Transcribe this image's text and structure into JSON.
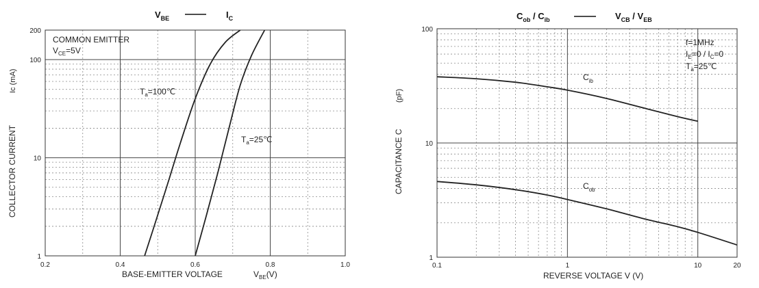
{
  "chart_data": [
    {
      "type": "line",
      "title_parts": {
        "a": "V",
        "a_sub": "BE",
        "b": "I",
        "b_sub": "C"
      },
      "xlabel": "BASE-EMITTER VOLTAGE",
      "xunit": {
        "sym": "V",
        "sub": "BE",
        "unit": "(V)"
      },
      "ylabel": "COLLECTOR CURRENT",
      "yunit": "Ic (mA)",
      "xlim": [
        0.2,
        1.0
      ],
      "ylim": [
        1,
        200
      ],
      "yscale": "log",
      "grid": true,
      "x_ticks": [
        "0.2",
        "0.4",
        "0.6",
        "0.8",
        "1.0"
      ],
      "y_ticks": [
        "1",
        "10",
        "100",
        "200"
      ],
      "annotations": {
        "line1": "COMMON EMITTER",
        "line2_a": "V",
        "line2_sub": "CE",
        "line2_b": "=5V"
      },
      "series": [
        {
          "name": "Ta=100℃",
          "label_a": "T",
          "label_sub": "a",
          "label_b": "=100℃",
          "points": [
            [
              0.465,
              1
            ],
            [
              0.5,
              2.6
            ],
            [
              0.53,
              6
            ],
            [
              0.56,
              14
            ],
            [
              0.6,
              40
            ],
            [
              0.64,
              90
            ],
            [
              0.68,
              150
            ],
            [
              0.72,
              200
            ]
          ]
        },
        {
          "name": "Ta=25℃",
          "label_a": "T",
          "label_sub": "a",
          "label_b": "=25℃",
          "points": [
            [
              0.6,
              1
            ],
            [
              0.63,
              2.6
            ],
            [
              0.66,
              7
            ],
            [
              0.69,
              20
            ],
            [
              0.72,
              55
            ],
            [
              0.75,
              110
            ],
            [
              0.785,
              200
            ]
          ]
        }
      ]
    },
    {
      "type": "line",
      "title_parts": {
        "a": "C",
        "a_sub": "ob",
        "b": "C",
        "b_sub": "ib",
        "c": "V",
        "c_sub": "CB",
        "d": "V",
        "d_sub": "EB"
      },
      "xlabel": "REVERSE VOLTAGE V (V)",
      "ylabel": "CAPACITANCE C",
      "yunit": "(pF)",
      "xscale": "log",
      "yscale": "log",
      "xlim": [
        0.1,
        20
      ],
      "ylim": [
        1,
        100
      ],
      "grid": true,
      "x_ticks": [
        "0.1",
        "1",
        "10",
        "20"
      ],
      "y_ticks": [
        "1",
        "10",
        "100"
      ],
      "annotations": {
        "freq": "f=1MHz",
        "ie_a": "I",
        "ie_sub": "E",
        "ie_b": "=0 / I",
        "ic_sub": "C",
        "ic_b": "=0",
        "ta_a": "T",
        "ta_sub": "a",
        "ta_b": "=25℃"
      },
      "series": [
        {
          "name": "Cib",
          "label_a": "C",
          "label_sub": "ib",
          "points": [
            [
              0.1,
              38
            ],
            [
              0.2,
              36.5
            ],
            [
              0.4,
              34
            ],
            [
              0.7,
              31
            ],
            [
              1,
              29
            ],
            [
              2,
              24.5
            ],
            [
              4,
              20
            ],
            [
              7,
              17
            ],
            [
              10,
              15.5
            ]
          ]
        },
        {
          "name": "Cob",
          "label_a": "C",
          "label_sub": "ob",
          "points": [
            [
              0.1,
              4.6
            ],
            [
              0.2,
              4.3
            ],
            [
              0.4,
              3.9
            ],
            [
              0.7,
              3.5
            ],
            [
              1,
              3.2
            ],
            [
              2,
              2.65
            ],
            [
              4,
              2.15
            ],
            [
              7,
              1.85
            ],
            [
              10,
              1.65
            ],
            [
              20,
              1.28
            ]
          ]
        }
      ]
    }
  ],
  "colors": {
    "axis": "#333333",
    "grid_major": "#444444",
    "grid_minor": "#888888",
    "curve": "#222222"
  }
}
